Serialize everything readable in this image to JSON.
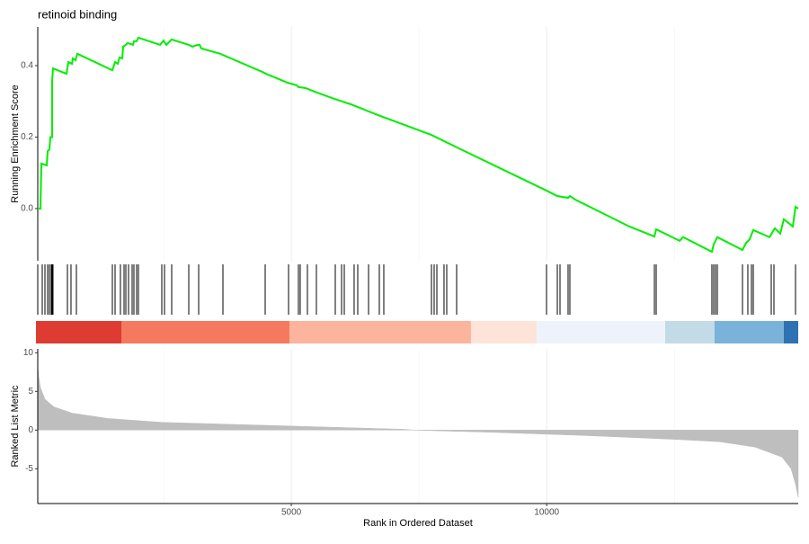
{
  "chart_data": [
    {
      "type": "line",
      "title": "retinoid binding",
      "ylabel": "Running Enrichment Score",
      "color": "#00ee00",
      "xlim": [
        0,
        14925
      ],
      "ylim": [
        -0.146,
        0.508
      ],
      "yticks": [
        {
          "value": 0,
          "label": "0.0"
        },
        0.2,
        0.4
      ],
      "x": [
        35,
        88,
        106,
        211,
        229,
        264,
        282,
        317,
        317,
        334,
        598,
        634,
        704,
        722,
        774,
        810,
        1496,
        1549,
        1602,
        1637,
        1690,
        1707,
        1760,
        1795,
        1901,
        1918,
        1971,
        2006,
        2429,
        2499,
        2552,
        2658,
        2992,
        3062,
        3168,
        3203,
        3238,
        3608,
        4435,
        4506,
        4928,
        5104,
        5139,
        5280,
        5456,
        5843,
        6160,
        6688,
        7744,
        8272,
        10000,
        10208,
        10419,
        10454,
        10560,
        11616,
        12109,
        12144,
        12602,
        12672,
        13235,
        13270,
        13341,
        13834,
        13904,
        13974,
        14045,
        14362,
        14467,
        14573,
        14643,
        14819,
        14872,
        14925
      ],
      "values": [
        0,
        0,
        0.126,
        0.121,
        0.161,
        0.165,
        0.2,
        0.2,
        0.357,
        0.392,
        0.377,
        0.41,
        0.405,
        0.42,
        0.415,
        0.433,
        0.387,
        0.41,
        0.405,
        0.423,
        0.42,
        0.453,
        0.458,
        0.463,
        0.458,
        0.468,
        0.468,
        0.478,
        0.458,
        0.47,
        0.458,
        0.473,
        0.458,
        0.453,
        0.458,
        0.458,
        0.448,
        0.433,
        0.382,
        0.377,
        0.352,
        0.345,
        0.34,
        0.337,
        0.327,
        0.307,
        0.292,
        0.262,
        0.206,
        0.169,
        0.05,
        0.035,
        0.03,
        0.035,
        0.025,
        -0.05,
        -0.078,
        -0.058,
        -0.09,
        -0.08,
        -0.121,
        -0.1,
        -0.08,
        -0.116,
        -0.096,
        -0.086,
        -0.06,
        -0.08,
        -0.055,
        -0.07,
        -0.03,
        -0.05,
        0.005,
        0
      ]
    },
    {
      "type": "rug",
      "color": "#000000",
      "xlim": [
        0,
        14925
      ],
      "x": [
        35,
        123,
        176,
        229,
        264,
        299,
        317,
        334,
        616,
        686,
        792,
        1496,
        1549,
        1654,
        1725,
        1760,
        1813,
        1883,
        1918,
        1971,
        2006,
        2464,
        2517,
        2658,
        2992,
        3186,
        3661,
        4488,
        4946,
        5139,
        5174,
        5315,
        5491,
        5861,
        5984,
        6037,
        6230,
        6301,
        6512,
        6723,
        6811,
        7744,
        7797,
        7850,
        7990,
        8043,
        8237,
        9997,
        10208,
        10261,
        10419,
        10454,
        12109,
        12144,
        13235,
        13270,
        13306,
        13341,
        13834,
        13939,
        14010,
        14045,
        14397,
        14450,
        14872
      ]
    },
    {
      "type": "colorbar",
      "xlim": [
        0,
        14925
      ],
      "bins": [
        0,
        1672,
        4963,
        8518,
        9803,
        12320,
        13288,
        14643,
        14925
      ],
      "colors": [
        "#de3b33",
        "#f5795f",
        "#fcb49c",
        "#fde3d8",
        "#eef3fb",
        "#c2dbe7",
        "#79b3d9",
        "#2f72b3"
      ]
    },
    {
      "type": "area",
      "ylabel": "Ranked List Metric",
      "xlabel": "Rank in Ordered Dataset",
      "color": "#bebebe",
      "xlim": [
        0,
        14925
      ],
      "ylim": [
        -9.5,
        10.5
      ],
      "yticks": [
        -5,
        0,
        5,
        10
      ],
      "xticks": [
        5000,
        10000
      ],
      "x_minor_grid": [
        2500,
        7500,
        12500
      ],
      "x": [
        35,
        53,
        88,
        176,
        352,
        704,
        1408,
        2464,
        4576,
        7216,
        7392,
        8976,
        10736,
        12496,
        13376,
        14080,
        14608,
        14784,
        14872,
        14925
      ],
      "values": [
        8.4,
        7,
        5.5,
        4,
        3,
        2.2,
        1.5,
        1.0,
        0.6,
        0.1,
        0,
        -0.3,
        -0.7,
        -1.2,
        -1.5,
        -2.2,
        -3.5,
        -5,
        -7,
        -8.7
      ]
    }
  ]
}
